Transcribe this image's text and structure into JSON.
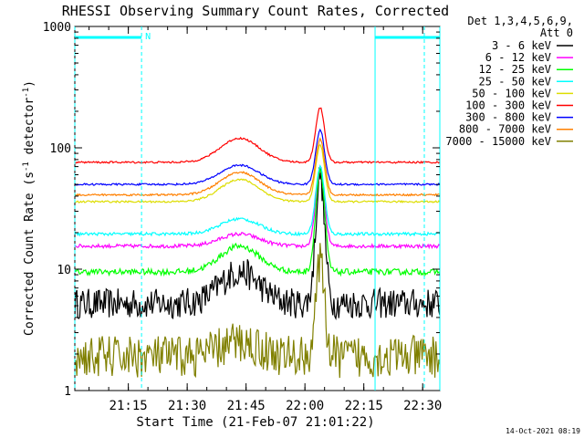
{
  "chart_data": {
    "type": "line",
    "title": "RHESSI Observing Summary Count Rates, Corrected",
    "xlabel": "Start Time (21-Feb-07 21:01:22)",
    "ylabel_main": "Corrected Count Rate (s",
    "ylabel_sup1": "-1",
    "ylabel_mid": " detector",
    "ylabel_sup2": "-1",
    "ylabel_end": ")",
    "yscale": "log",
    "ylim": [
      1,
      1000
    ],
    "xlim_minutes": [
      0,
      93
    ],
    "x_ticks": [
      {
        "label": "21:15",
        "minutes": 13.63
      },
      {
        "label": "21:30",
        "minutes": 28.63
      },
      {
        "label": "21:45",
        "minutes": 43.63
      },
      {
        "label": "22:00",
        "minutes": 58.63
      },
      {
        "label": "22:15",
        "minutes": 73.63
      },
      {
        "label": "22:30",
        "minutes": 88.63
      }
    ],
    "y_ticks": [
      {
        "label": "1",
        "value": 1
      },
      {
        "label": "10",
        "value": 10
      },
      {
        "label": "100",
        "value": 100
      },
      {
        "label": "1000",
        "value": 1000
      }
    ],
    "legend_header": [
      "Det 1,3,4,5,6,9,",
      "Att 0"
    ],
    "series": [
      {
        "name": "3 - 6 keV",
        "color": "#000000",
        "base": 5.2,
        "hump": 9.5,
        "peak": 60,
        "noise": 0.5
      },
      {
        "name": "6 - 12 keV",
        "color": "#ff00ff",
        "base": 15.5,
        "hump": 19.5,
        "peak": 63,
        "noise": 0.06
      },
      {
        "name": "12 - 25 keV",
        "color": "#00ff00",
        "base": 9.5,
        "hump": 15.5,
        "peak": 66,
        "noise": 0.1
      },
      {
        "name": "25 - 50 keV",
        "color": "#00ffff",
        "base": 19.5,
        "hump": 26,
        "peak": 70,
        "noise": 0.05
      },
      {
        "name": "50 - 100 keV",
        "color": "#dddd00",
        "base": 36,
        "hump": 55,
        "peak": 105,
        "noise": 0.03
      },
      {
        "name": "100 - 300 keV",
        "color": "#ff0000",
        "base": 76,
        "hump": 120,
        "peak": 215,
        "noise": 0.03
      },
      {
        "name": "300 - 800 keV",
        "color": "#0000ff",
        "base": 50,
        "hump": 72,
        "peak": 140,
        "noise": 0.03
      },
      {
        "name": "800 - 7000 keV",
        "color": "#ff8000",
        "base": 41,
        "hump": 63,
        "peak": 118,
        "noise": 0.03
      },
      {
        "name": "7000 - 15000 keV",
        "color": "#808000",
        "base": 1.9,
        "hump": 2.5,
        "peak": 11,
        "noise": 0.7
      }
    ],
    "peak_minutes": 62.5,
    "hump_minutes": 42,
    "saa_intervals_minutes": [
      [
        0,
        17
      ],
      [
        76.5,
        93
      ]
    ],
    "night_label": "N",
    "night_marker_minutes": 17,
    "footer_date": "14-Oct-2021 08:19"
  }
}
